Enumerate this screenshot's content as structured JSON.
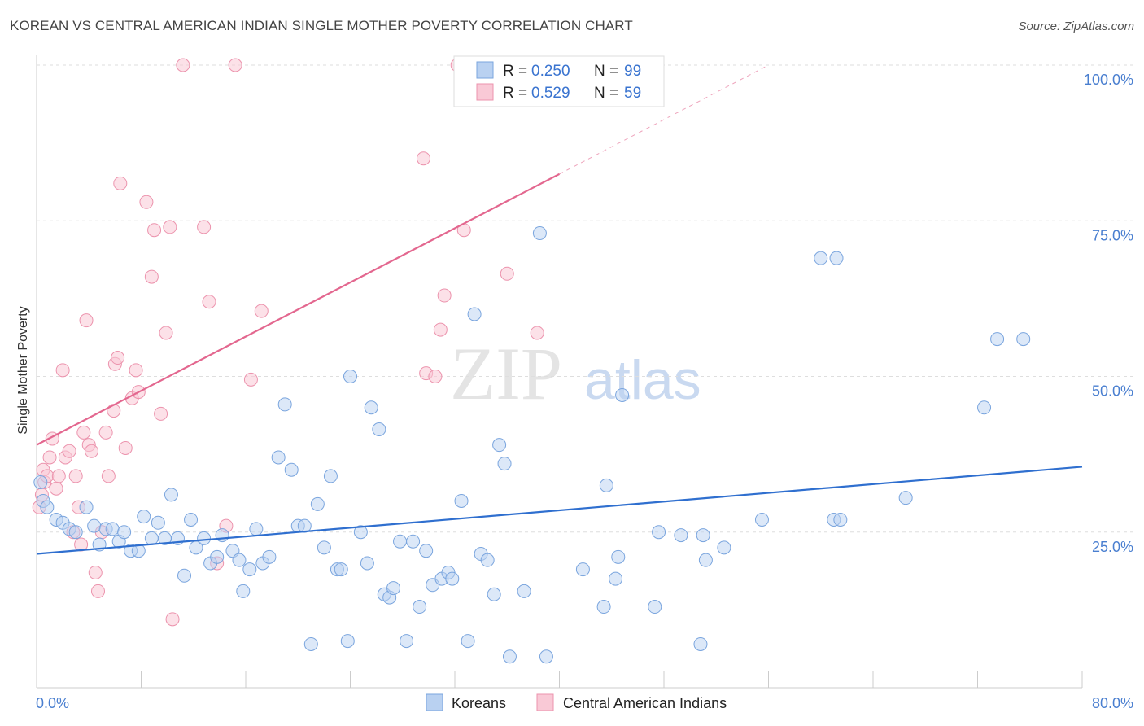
{
  "header": {
    "title": "KOREAN VS CENTRAL AMERICAN INDIAN SINGLE MOTHER POVERTY CORRELATION CHART",
    "source": "Source: ZipAtlas.com"
  },
  "watermark": {
    "zip": "ZIP",
    "atlas": "atlas"
  },
  "legend": {
    "rows": [
      {
        "r_label": "R = ",
        "r_value": "0.250",
        "n_label": "N = ",
        "n_value": "99",
        "color": "#aecbf0"
      },
      {
        "r_label": "R = ",
        "r_value": "0.529",
        "n_label": "N = ",
        "n_value": "59",
        "color": "#f7bccd"
      }
    ]
  },
  "colors": {
    "blue_fill": "#b9d1f1",
    "blue_stroke": "#7aa5de",
    "blue_line": "#2f6fcf",
    "pink_fill": "#f9c9d6",
    "pink_stroke": "#ec93ad",
    "pink_line": "#e3678f"
  },
  "chart_data": {
    "type": "scatter",
    "xlabel": "",
    "ylabel": "Single Mother Poverty",
    "xlim": [
      0,
      80
    ],
    "ylim": [
      0,
      100
    ],
    "x_tick_labels": [
      "0.0%",
      "80.0%"
    ],
    "y_ticks": [
      25,
      50,
      75,
      100
    ],
    "y_tick_labels": [
      "25.0%",
      "50.0%",
      "75.0%",
      "100.0%"
    ],
    "grid": true,
    "legend_position": "top-center",
    "series": [
      {
        "name": "Koreans",
        "color": "#b9d1f1",
        "trend": {
          "x": [
            0,
            80
          ],
          "y": [
            21.5,
            35.5
          ]
        },
        "points": [
          [
            0.3,
            33
          ],
          [
            0.5,
            30
          ],
          [
            0.8,
            29
          ],
          [
            1.5,
            27
          ],
          [
            2,
            26.5
          ],
          [
            2.5,
            25.5
          ],
          [
            3,
            25
          ],
          [
            3.8,
            29
          ],
          [
            4.4,
            26
          ],
          [
            4.8,
            23
          ],
          [
            5.3,
            25.5
          ],
          [
            5.8,
            25.5
          ],
          [
            6.3,
            23.5
          ],
          [
            6.7,
            25
          ],
          [
            7.2,
            22
          ],
          [
            7.8,
            22
          ],
          [
            8.2,
            27.5
          ],
          [
            8.8,
            24
          ],
          [
            9.3,
            26.5
          ],
          [
            9.8,
            24
          ],
          [
            10.3,
            31
          ],
          [
            10.8,
            24
          ],
          [
            11.3,
            18
          ],
          [
            11.8,
            27
          ],
          [
            12.2,
            22.5
          ],
          [
            12.8,
            24
          ],
          [
            13.3,
            20
          ],
          [
            13.8,
            21
          ],
          [
            14.2,
            24.5
          ],
          [
            15,
            22
          ],
          [
            15.5,
            20.5
          ],
          [
            15.8,
            15.5
          ],
          [
            16.3,
            19
          ],
          [
            16.8,
            25.5
          ],
          [
            17.3,
            20
          ],
          [
            17.8,
            21
          ],
          [
            18.5,
            37
          ],
          [
            19,
            45.5
          ],
          [
            19.5,
            35
          ],
          [
            20,
            26
          ],
          [
            20.5,
            26
          ],
          [
            21,
            7
          ],
          [
            21.5,
            29.5
          ],
          [
            22,
            22.5
          ],
          [
            22.5,
            34
          ],
          [
            23,
            19
          ],
          [
            23.3,
            19
          ],
          [
            23.8,
            7.5
          ],
          [
            24,
            50
          ],
          [
            24.8,
            25
          ],
          [
            25.3,
            20
          ],
          [
            25.6,
            45
          ],
          [
            26.2,
            41.5
          ],
          [
            26.6,
            15
          ],
          [
            27,
            14.5
          ],
          [
            27.3,
            16
          ],
          [
            27.8,
            23.5
          ],
          [
            28.3,
            7.5
          ],
          [
            28.8,
            23.5
          ],
          [
            29.3,
            13
          ],
          [
            29.8,
            22
          ],
          [
            30.3,
            16.5
          ],
          [
            31,
            17.5
          ],
          [
            31.5,
            18.5
          ],
          [
            31.8,
            17.5
          ],
          [
            32.5,
            30
          ],
          [
            33,
            7.5
          ],
          [
            33.5,
            60
          ],
          [
            34,
            21.5
          ],
          [
            34.5,
            20.5
          ],
          [
            35,
            15
          ],
          [
            35.4,
            39
          ],
          [
            35.8,
            36
          ],
          [
            36.2,
            5
          ],
          [
            37.3,
            15.5
          ],
          [
            38.5,
            73
          ],
          [
            39,
            5
          ],
          [
            41.8,
            19
          ],
          [
            43.4,
            13
          ],
          [
            43.6,
            32.5
          ],
          [
            44.3,
            17.5
          ],
          [
            44.5,
            21
          ],
          [
            44.8,
            47
          ],
          [
            47.3,
            13
          ],
          [
            47.6,
            25
          ],
          [
            49.3,
            24.5
          ],
          [
            50.8,
            7
          ],
          [
            51,
            24.5
          ],
          [
            51.2,
            20.5
          ],
          [
            52.6,
            22.5
          ],
          [
            55.5,
            27
          ],
          [
            60,
            69
          ],
          [
            61.2,
            69
          ],
          [
            61,
            27
          ],
          [
            61.5,
            27
          ],
          [
            66.5,
            30.5
          ],
          [
            72.5,
            45
          ],
          [
            73.5,
            56
          ],
          [
            75.5,
            56
          ]
        ]
      },
      {
        "name": "Central American Indians",
        "color": "#f9c9d6",
        "trend": {
          "x": [
            0,
            40
          ],
          "y": [
            39,
            82.5
          ]
        },
        "trend_dashed": {
          "x": [
            40,
            56
          ],
          "y": [
            82.5,
            100
          ]
        },
        "points": [
          [
            0.2,
            29
          ],
          [
            0.4,
            31
          ],
          [
            0.5,
            35
          ],
          [
            0.6,
            33
          ],
          [
            0.8,
            34
          ],
          [
            1,
            37
          ],
          [
            1.2,
            40
          ],
          [
            1.5,
            32
          ],
          [
            1.7,
            34
          ],
          [
            2,
            51
          ],
          [
            2.2,
            37
          ],
          [
            2.5,
            38
          ],
          [
            2.8,
            25
          ],
          [
            3,
            34
          ],
          [
            3.2,
            29
          ],
          [
            3.4,
            23
          ],
          [
            3.6,
            41
          ],
          [
            3.8,
            59
          ],
          [
            4,
            39
          ],
          [
            4.2,
            38
          ],
          [
            4.5,
            18.5
          ],
          [
            4.7,
            15.5
          ],
          [
            5,
            25
          ],
          [
            5.3,
            41
          ],
          [
            5.5,
            34
          ],
          [
            5.9,
            44.5
          ],
          [
            6,
            52
          ],
          [
            6.2,
            53
          ],
          [
            6.4,
            81
          ],
          [
            6.8,
            38.5
          ],
          [
            7.3,
            46.5
          ],
          [
            7.6,
            51
          ],
          [
            7.8,
            47.5
          ],
          [
            8.4,
            78
          ],
          [
            8.8,
            66
          ],
          [
            9,
            73.5
          ],
          [
            9.5,
            44
          ],
          [
            9.9,
            57
          ],
          [
            10.2,
            74
          ],
          [
            10.4,
            11
          ],
          [
            11.2,
            100
          ],
          [
            12.8,
            74
          ],
          [
            13.2,
            62
          ],
          [
            13.8,
            20
          ],
          [
            14.5,
            26
          ],
          [
            15.2,
            100
          ],
          [
            16.4,
            49.5
          ],
          [
            17.2,
            60.5
          ],
          [
            29.6,
            85
          ],
          [
            29.8,
            50.5
          ],
          [
            30.5,
            50
          ],
          [
            30.9,
            57.5
          ],
          [
            31.2,
            63
          ],
          [
            32.7,
            73.5
          ],
          [
            32.2,
            100
          ],
          [
            33,
            100
          ],
          [
            36,
            66.5
          ],
          [
            38.3,
            57
          ],
          [
            40.2,
            100
          ]
        ]
      }
    ]
  },
  "bottom_legend": [
    {
      "label": "Koreans",
      "color": "#b9d1f1"
    },
    {
      "label": "Central American Indians",
      "color": "#f9c9d6"
    }
  ]
}
